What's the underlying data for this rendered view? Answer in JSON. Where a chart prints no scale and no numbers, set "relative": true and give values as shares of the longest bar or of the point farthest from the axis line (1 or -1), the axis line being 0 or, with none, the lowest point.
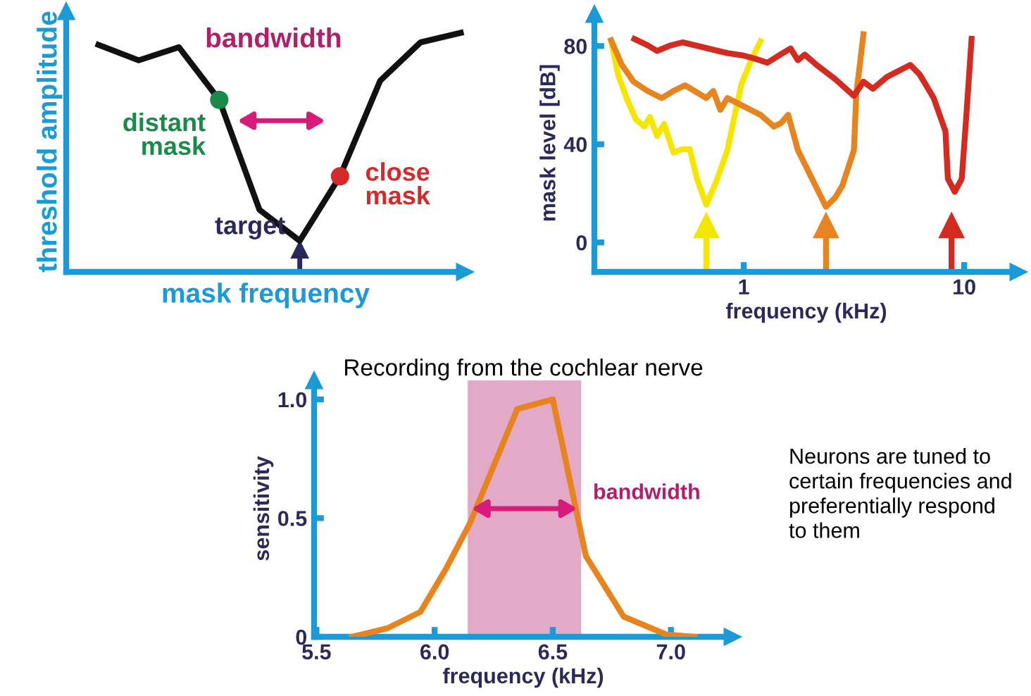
{
  "chart_data": [
    {
      "type": "line",
      "relative": true,
      "xlabel": "mask frequency",
      "ylabel": "threshold amplitude",
      "categories": [
        null,
        null,
        null,
        null,
        null,
        null,
        null,
        null,
        null,
        null
      ],
      "series": [
        {
          "type": "line",
          "color": "#111111",
          "values": [
            0.95,
            0.885,
            0.94,
            0.72,
            0.26,
            0.13,
            0.4,
            0.8,
            0.96,
            1
          ]
        }
      ],
      "annotations": [
        "bandwidth",
        "distant mask",
        "close mask",
        "target"
      ]
    },
    {
      "type": "line",
      "log": "x",
      "xlabel": "frequency (kHz)",
      "ylabel": "mask level [dB]",
      "xlim": [
        0.21,
        17.6
      ],
      "ylim": [
        -12,
        93
      ],
      "xticks": [
        1,
        10
      ],
      "yticks": [
        0,
        40,
        80
      ],
      "series": [
        {
          "color": "#f5e600",
          "x": [
            0.25,
            0.269,
            0.294,
            0.324,
            0.354,
            0.375,
            0.404,
            0.435,
            0.48,
            0.529,
            0.569,
            0.613,
            0.676,
            0.745,
            0.843,
            0.906,
            0.976,
            1.08,
            1.19
          ],
          "values": [
            82.3,
            68.4,
            58.8,
            50.1,
            47.2,
            51.1,
            43.4,
            48.2,
            36.6,
            38.0,
            38.0,
            26.0,
            15.4,
            24.1,
            37.6,
            51.1,
            64.5,
            74.2,
            81.9
          ]
        },
        {
          "color": "#e8841e",
          "x": [
            0.25,
            0.28,
            0.316,
            0.366,
            0.424,
            0.48,
            0.542,
            0.598,
            0.676,
            0.727,
            0.783,
            0.843,
            0.976,
            1.19,
            1.37,
            1.48,
            1.59,
            1.76,
            2.04,
            2.36,
            2.6,
            2.8,
            3.16,
            3.24,
            3.36,
            3.49
          ],
          "values": [
            82.3,
            72.3,
            65.5,
            61.7,
            58.8,
            61.7,
            64.0,
            61.7,
            58.8,
            61.7,
            54.0,
            58.8,
            55.9,
            52.0,
            47.2,
            48.7,
            52.0,
            37.6,
            26.0,
            14.5,
            18.3,
            23.1,
            37.6,
            60.7,
            72.3,
            84.8
          ]
        },
        {
          "color": "#d42a20",
          "x": [
            0.319,
            0.366,
            0.404,
            0.457,
            0.529,
            0.659,
            0.843,
            1.0,
            1.13,
            1.28,
            1.44,
            1.63,
            1.76,
            1.89,
            2.14,
            2.6,
            3.16,
            3.49,
            3.85,
            4.46,
            5.69,
            6.28,
            7.27,
            8.22,
            8.43,
            9.06,
            9.75,
            10.25,
            10.8
          ],
          "values": [
            82.9,
            80.3,
            78.0,
            80.0,
            81.5,
            79.4,
            77.1,
            76.1,
            74.8,
            73.2,
            76.1,
            79.0,
            74.2,
            76.5,
            72.3,
            66.5,
            59.7,
            65.5,
            62.6,
            67.4,
            72.3,
            68.4,
            58.8,
            45.3,
            26.0,
            20.6,
            26.0,
            53.0,
            82.9
          ]
        }
      ],
      "ref_lines": [
        {
          "axis": "x",
          "value": 0.676,
          "color": "#f5e600"
        },
        {
          "axis": "x",
          "value": 2.36,
          "color": "#e8841e"
        },
        {
          "axis": "x",
          "value": 8.76,
          "color": "#d42a20"
        }
      ]
    },
    {
      "type": "line",
      "title": "Recording from the cochlear nerve",
      "xlabel": "frequency (kHz)",
      "ylabel": "sensitivity",
      "xlim": [
        5.49,
        7.26
      ],
      "ylim": [
        0,
        1.08
      ],
      "xticks": [
        {
          "value": 5.5,
          "label": "5.5"
        },
        {
          "value": 6,
          "label": "6.0"
        },
        {
          "value": 6.5,
          "label": "6.5"
        },
        {
          "value": 7,
          "label": "7.0"
        }
      ],
      "yticks": [
        0,
        0.5,
        {
          "value": 1,
          "label": "1.0"
        }
      ],
      "series": [
        {
          "color": "#e8841e",
          "x": [
            5.65,
            5.8,
            5.94,
            6.05,
            6.15,
            6.35,
            6.5,
            6.64,
            6.8,
            6.98,
            7.1
          ],
          "values": [
            0,
            0.036,
            0.105,
            0.29,
            0.48,
            0.96,
            1.0,
            0.34,
            0.085,
            0.01,
            0
          ]
        }
      ],
      "bands": [
        {
          "axis": "x",
          "from": 6.14,
          "to": 6.62,
          "label": "bandwidth",
          "color": "#e2aac6"
        }
      ]
    },
    {
      "type": "other",
      "annotations": [
        "Neurons are tuned to certain frequencies and preferentially respond to them"
      ]
    }
  ]
}
